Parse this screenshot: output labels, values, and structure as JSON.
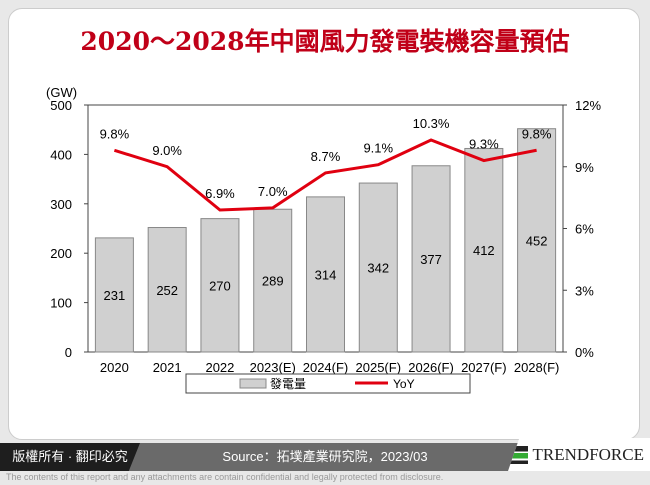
{
  "title": "2020～2028年中國風力發電裝機容量預估",
  "chart_data": {
    "type": "bar+line",
    "title": "2020～2028年中國風力發電裝機容量預估",
    "categories": [
      "2020",
      "2021",
      "2022",
      "2023(E)",
      "2024(F)",
      "2025(F)",
      "2026(F)",
      "2027(F)",
      "2028(F)"
    ],
    "left_axis": {
      "unit": "(GW)",
      "range": [
        0,
        500
      ],
      "ticks": [
        "0",
        "100",
        "200",
        "300",
        "400",
        "500"
      ]
    },
    "right_axis": {
      "range": [
        0,
        12
      ],
      "ticks": [
        "0%",
        "3%",
        "6%",
        "9%",
        "12%"
      ]
    },
    "series": [
      {
        "name": "發電量",
        "type": "bar",
        "axis": "left",
        "values": [
          231,
          252,
          270,
          289,
          314,
          342,
          377,
          412,
          452
        ],
        "color": "#d0d0d0"
      },
      {
        "name": "YoY",
        "type": "line",
        "axis": "right",
        "values": [
          9.8,
          9.0,
          6.9,
          7.0,
          8.7,
          9.1,
          10.3,
          9.3,
          9.8
        ],
        "labels": [
          "9.8%",
          "9.0%",
          "6.9%",
          "7.0%",
          "8.7%",
          "9.1%",
          "10.3%",
          "9.3%",
          "9.8%"
        ],
        "color": "#e00010"
      }
    ],
    "legend": "bottom"
  },
  "footer": {
    "copyright": "版權所有 · 翻印必究",
    "source": "Source：拓墣產業研究院，2023/03",
    "brand": "TRENDFORCE",
    "disclaimer": "The contents of this report and any attachments are contain confidential and legally protected from disclosure."
  }
}
